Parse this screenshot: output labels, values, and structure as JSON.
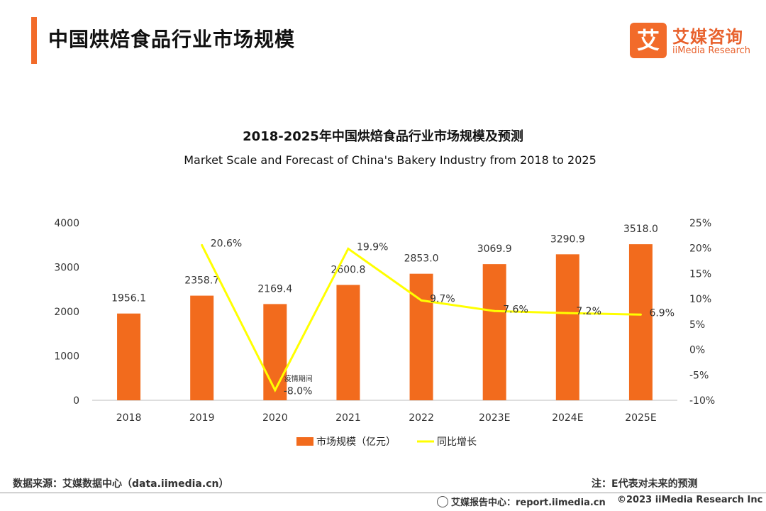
{
  "header": {
    "title": "中国烘焙食品行业市场规模",
    "logo_mark": "艾",
    "logo_cn": "艾媒咨询",
    "logo_en": "iiMedia Research"
  },
  "chart_data": {
    "type": "bar",
    "title": "2018-2025年中国烘焙食品行业市场规模及预测",
    "subtitle": "Market Scale and Forecast of China's Bakery Industry from 2018 to 2025",
    "categories": [
      "2018",
      "2019",
      "2020",
      "2021",
      "2022",
      "2023E",
      "2024E",
      "2025E"
    ],
    "series": [
      {
        "name": "市场规模（亿元）",
        "type": "bar",
        "axis": "left",
        "color": "#f26b1d",
        "values": [
          1956.1,
          2358.7,
          2169.4,
          2600.8,
          2853.0,
          3069.9,
          3290.9,
          3518.0
        ],
        "labels": [
          "1956.1",
          "2358.7",
          "2169.4",
          "2600.8",
          "2853.0",
          "3069.9",
          "3290.9",
          "3518.0"
        ]
      },
      {
        "name": "同比增长",
        "type": "line",
        "axis": "right",
        "color": "#ffff00",
        "values": [
          null,
          20.6,
          -8.0,
          19.9,
          9.7,
          7.6,
          7.2,
          6.9
        ],
        "labels": [
          "",
          "20.6%",
          "-8.0%",
          "19.9%",
          "9.7%",
          "7.6%",
          "7.2%",
          "6.9%"
        ]
      }
    ],
    "ylim_left": [
      0,
      4000
    ],
    "yticks_left": [
      "0",
      "1000",
      "2000",
      "3000",
      "4000"
    ],
    "ylim_right": [
      -10,
      25
    ],
    "yticks_right": [
      "-10%",
      "-5%",
      "0%",
      "5%",
      "10%",
      "15%",
      "20%",
      "25%"
    ],
    "annotation": "疫情期间",
    "legend_position": "bottom",
    "grid": false
  },
  "footer": {
    "source": "数据来源：艾媒数据中心（data.iimedia.cn）",
    "note": "注：E代表对未来的预测",
    "report": "艾媒报告中心：report.iimedia.cn",
    "copyright": "©2023 iiMedia Research Inc"
  }
}
